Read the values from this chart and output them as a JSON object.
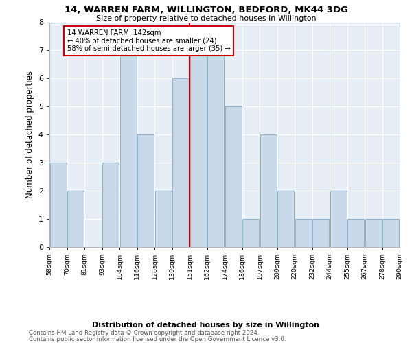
{
  "title": "14, WARREN FARM, WILLINGTON, BEDFORD, MK44 3DG",
  "subtitle": "Size of property relative to detached houses in Willington",
  "xlabel_bottom": "Distribution of detached houses by size in Willington",
  "ylabel": "Number of detached properties",
  "bin_labels": [
    "58sqm",
    "70sqm",
    "81sqm",
    "93sqm",
    "104sqm",
    "116sqm",
    "128sqm",
    "139sqm",
    "151sqm",
    "162sqm",
    "174sqm",
    "186sqm",
    "197sqm",
    "209sqm",
    "220sqm",
    "232sqm",
    "244sqm",
    "255sqm",
    "267sqm",
    "278sqm",
    "290sqm"
  ],
  "values": [
    3,
    2,
    0,
    3,
    7,
    4,
    2,
    6,
    7,
    7,
    5,
    1,
    4,
    2,
    1,
    1,
    2,
    1,
    1,
    1
  ],
  "bar_color": "#c9d9ea",
  "bar_edge_color": "#7faac5",
  "property_bin_index": 7,
  "property_sqm": 142,
  "annotation_line1": "14 WARREN FARM: 142sqm",
  "annotation_line2": "← 40% of detached houses are smaller (24)",
  "annotation_line3": "58% of semi-detached houses are larger (35) →",
  "annotation_box_color": "#ffffff",
  "annotation_box_edge": "#cc0000",
  "vline_color": "#cc0000",
  "background_color": "#e8eef5",
  "footer_line1": "Contains HM Land Registry data © Crown copyright and database right 2024.",
  "footer_line2": "Contains public sector information licensed under the Open Government Licence v3.0.",
  "ylim": [
    0,
    8
  ],
  "yticks": [
    0,
    1,
    2,
    3,
    4,
    5,
    6,
    7,
    8
  ]
}
